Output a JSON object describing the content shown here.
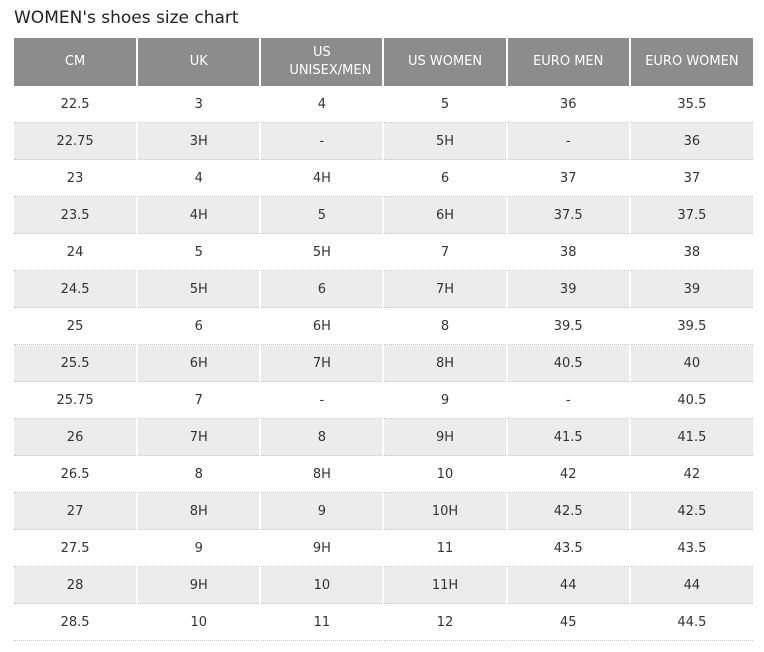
{
  "title": "WOMEN's shoes size chart",
  "table": {
    "header": [
      "CM",
      "UK",
      "US UNISEX/MEN",
      "US WOMEN",
      "EURO MEN",
      "EURO WOMEN"
    ],
    "rows": [
      [
        "22.5",
        "3",
        "4",
        "5",
        "36",
        "35.5"
      ],
      [
        "22.75",
        "3H",
        "-",
        "5H",
        "-",
        "36"
      ],
      [
        "23",
        "4",
        "4H",
        "6",
        "37",
        "37"
      ],
      [
        "23.5",
        "4H",
        "5",
        "6H",
        "37.5",
        "37.5"
      ],
      [
        "24",
        "5",
        "5H",
        "7",
        "38",
        "38"
      ],
      [
        "24.5",
        "5H",
        "6",
        "7H",
        "39",
        "39"
      ],
      [
        "25",
        "6",
        "6H",
        "8",
        "39.5",
        "39.5"
      ],
      [
        "25.5",
        "6H",
        "7H",
        "8H",
        "40.5",
        "40"
      ],
      [
        "25.75",
        "7",
        "-",
        "9",
        "-",
        "40.5"
      ],
      [
        "26",
        "7H",
        "8",
        "9H",
        "41.5",
        "41.5"
      ],
      [
        "26.5",
        "8",
        "8H",
        "10",
        "42",
        "42"
      ],
      [
        "27",
        "8H",
        "9",
        "10H",
        "42.5",
        "42.5"
      ],
      [
        "27.5",
        "9",
        "9H",
        "11",
        "43.5",
        "43.5"
      ],
      [
        "28",
        "9H",
        "10",
        "11H",
        "44",
        "44"
      ],
      [
        "28.5",
        "10",
        "11",
        "12",
        "45",
        "44.5"
      ]
    ]
  }
}
